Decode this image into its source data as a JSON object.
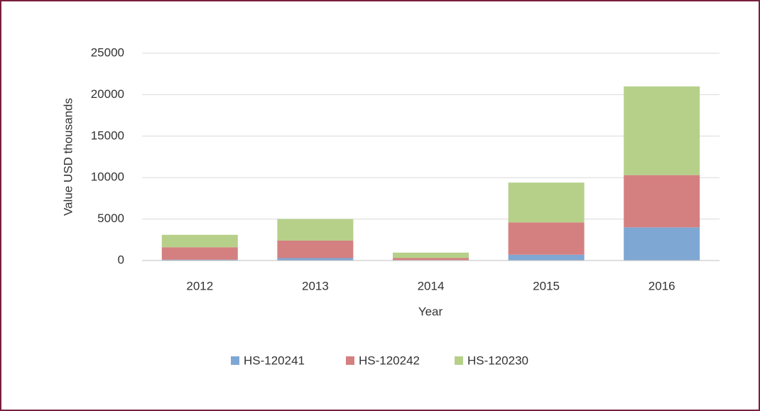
{
  "chart_data": {
    "type": "stacked_bar",
    "categories": [
      "2012",
      "2013",
      "2014",
      "2015",
      "2016"
    ],
    "series": [
      {
        "name": "HS-120241",
        "color": "#7fa7d4",
        "values": [
          100,
          300,
          50,
          700,
          4000
        ]
      },
      {
        "name": "HS-120242",
        "color": "#d48080",
        "values": [
          1500,
          2100,
          250,
          3900,
          6300
        ]
      },
      {
        "name": "HS-120230",
        "color": "#b6d089",
        "values": [
          1500,
          2600,
          650,
          4800,
          10700
        ]
      }
    ],
    "ylim": [
      0,
      25000
    ],
    "yticks": [
      0,
      5000,
      10000,
      15000,
      20000,
      25000
    ],
    "y_label": "Value USD thousands",
    "x_label": "Year",
    "grid": true,
    "legend": "bottom"
  }
}
